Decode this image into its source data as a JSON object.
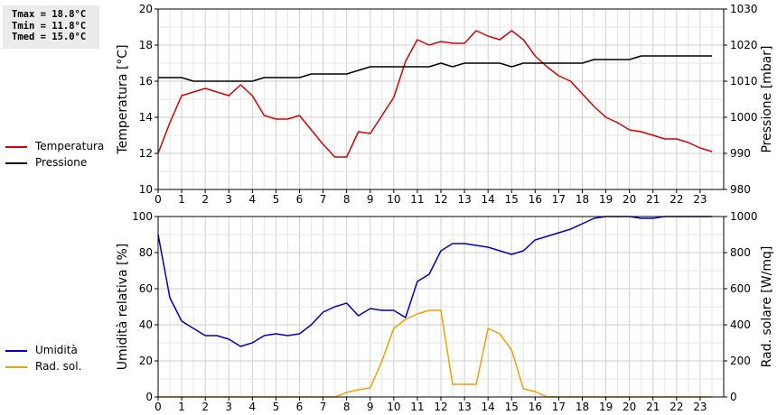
{
  "stats": {
    "tmax": "Tmax = 18.8°C",
    "tmin": "Tmin = 11.8°C",
    "tmed": "Tmed = 15.0°C"
  },
  "legend_top": [
    {
      "label": "Temperatura",
      "color": "#d80000"
    },
    {
      "label": "Pressione",
      "color": "#000000"
    }
  ],
  "legend_bottom": [
    {
      "label": "Umidità",
      "color": "#0000c0"
    },
    {
      "label": "Rad. sol.",
      "color": "#f0a000"
    }
  ],
  "chart_data": [
    {
      "type": "line",
      "xlim": [
        0,
        24
      ],
      "x_ticks": [
        "0",
        "1",
        "2",
        "3",
        "4",
        "5",
        "6",
        "7",
        "8",
        "9",
        "10",
        "11",
        "12",
        "13",
        "14",
        "15",
        "16",
        "17",
        "18",
        "19",
        "20",
        "21",
        "22",
        "23"
      ],
      "ylabel": "Temperatura [°C]",
      "ylim": [
        10,
        20
      ],
      "y_ticks": [
        "10",
        "12",
        "14",
        "16",
        "18",
        "20"
      ],
      "y2label": "Pressione [mbar]",
      "y2lim": [
        980,
        1030
      ],
      "y2_ticks": [
        "980",
        "990",
        "1000",
        "1010",
        "1020",
        "1030"
      ],
      "grid": true,
      "series": [
        {
          "name": "Temperatura",
          "axis": "left",
          "color": "#d80000",
          "x": [
            0,
            0.5,
            1,
            1.5,
            2,
            2.5,
            3,
            3.5,
            4,
            4.5,
            5,
            5.5,
            6,
            6.5,
            7,
            7.5,
            8,
            8.5,
            9,
            9.5,
            10,
            10.5,
            11,
            11.5,
            12,
            12.5,
            13,
            13.5,
            14,
            14.5,
            15,
            15.5,
            16,
            16.5,
            17,
            17.5,
            18,
            18.5,
            19,
            19.5,
            20,
            20.5,
            21,
            21.5,
            22,
            22.5,
            23,
            23.5
          ],
          "y": [
            12.0,
            13.7,
            15.2,
            15.4,
            15.6,
            15.4,
            15.2,
            15.8,
            15.2,
            14.1,
            13.9,
            13.9,
            14.1,
            13.3,
            12.5,
            11.8,
            11.8,
            13.2,
            13.1,
            14.1,
            15.1,
            17.1,
            18.3,
            18.0,
            18.2,
            18.1,
            18.1,
            18.8,
            18.5,
            18.3,
            18.8,
            18.3,
            17.4,
            16.8,
            16.3,
            16.0,
            15.3,
            14.6,
            14.0,
            13.7,
            13.3,
            13.2,
            13.0,
            12.8,
            12.8,
            12.6,
            12.3,
            12.1
          ]
        },
        {
          "name": "Pressione",
          "axis": "right",
          "color": "#000000",
          "x": [
            0,
            0.5,
            1,
            1.5,
            2,
            2.5,
            3,
            3.5,
            4,
            4.5,
            5,
            5.5,
            6,
            6.5,
            7,
            7.5,
            8,
            8.5,
            9,
            9.5,
            10,
            10.5,
            11,
            11.5,
            12,
            12.5,
            13,
            13.5,
            14,
            14.5,
            15,
            15.5,
            16,
            16.5,
            17,
            17.5,
            18,
            18.5,
            19,
            19.5,
            20,
            20.5,
            21,
            21.5,
            22,
            22.5,
            23,
            23.5
          ],
          "y": [
            1011,
            1011,
            1011,
            1010,
            1010,
            1010,
            1010,
            1010,
            1010,
            1011,
            1011,
            1011,
            1011,
            1012,
            1012,
            1012,
            1012,
            1013,
            1014,
            1014,
            1014,
            1014,
            1014,
            1014,
            1015,
            1014,
            1015,
            1015,
            1015,
            1015,
            1014,
            1015,
            1015,
            1015,
            1015,
            1015,
            1015,
            1016,
            1016,
            1016,
            1016,
            1017,
            1017,
            1017,
            1017,
            1017,
            1017,
            1017
          ]
        }
      ]
    },
    {
      "type": "line",
      "xlim": [
        0,
        24
      ],
      "x_ticks": [
        "0",
        "1",
        "2",
        "3",
        "4",
        "5",
        "6",
        "7",
        "8",
        "9",
        "10",
        "11",
        "12",
        "13",
        "14",
        "15",
        "16",
        "17",
        "18",
        "19",
        "20",
        "21",
        "22",
        "23"
      ],
      "ylabel": "Umidità relativa [%]",
      "ylim": [
        0,
        100
      ],
      "y_ticks": [
        "0",
        "20",
        "40",
        "60",
        "80",
        "100"
      ],
      "y2label": "Rad. solare [W/mq]",
      "y2lim": [
        0,
        1000
      ],
      "y2_ticks": [
        "0",
        "200",
        "400",
        "600",
        "800",
        "1000"
      ],
      "grid": true,
      "series": [
        {
          "name": "Umidità",
          "axis": "left",
          "color": "#0000c0",
          "x": [
            0,
            0.5,
            1,
            1.5,
            2,
            2.5,
            3,
            3.5,
            4,
            4.5,
            5,
            5.5,
            6,
            6.5,
            7,
            7.5,
            8,
            8.5,
            9,
            9.5,
            10,
            10.5,
            11,
            11.5,
            12,
            12.5,
            13,
            13.5,
            14,
            14.5,
            15,
            15.5,
            16,
            16.5,
            17,
            17.5,
            18,
            18.5,
            19,
            19.5,
            20,
            20.5,
            21,
            21.5,
            22,
            22.5,
            23,
            23.5
          ],
          "y": [
            90,
            55,
            42,
            38,
            34,
            34,
            32,
            28,
            30,
            34,
            35,
            34,
            35,
            40,
            47,
            50,
            52,
            45,
            49,
            48,
            48,
            44,
            64,
            68,
            81,
            85,
            85,
            84,
            83,
            81,
            79,
            81,
            87,
            89,
            91,
            93,
            96,
            99,
            100,
            100,
            100,
            99,
            99,
            100,
            100,
            100,
            100,
            100
          ]
        },
        {
          "name": "Rad. sol.",
          "axis": "right",
          "color": "#f0a000",
          "x": [
            0,
            0.5,
            1,
            1.5,
            2,
            2.5,
            3,
            3.5,
            4,
            4.5,
            5,
            5.5,
            6,
            6.5,
            7,
            7.5,
            8,
            8.5,
            9,
            9.5,
            10,
            10.5,
            11,
            11.5,
            12,
            12.5,
            13,
            13.5,
            14,
            14.5,
            15,
            15.5,
            16,
            16.5,
            17,
            17.5,
            18,
            18.5,
            19,
            19.5,
            20,
            20.5,
            21,
            21.5,
            22,
            22.5,
            23,
            23.5
          ],
          "y": [
            0,
            0,
            0,
            0,
            0,
            0,
            0,
            0,
            0,
            0,
            0,
            0,
            0,
            0,
            0,
            0,
            25,
            40,
            50,
            200,
            380,
            430,
            460,
            480,
            480,
            70,
            70,
            70,
            380,
            350,
            260,
            45,
            30,
            0,
            0,
            0,
            0,
            0,
            0,
            0,
            0,
            0,
            0,
            0,
            0,
            0,
            0,
            0
          ]
        }
      ]
    }
  ]
}
